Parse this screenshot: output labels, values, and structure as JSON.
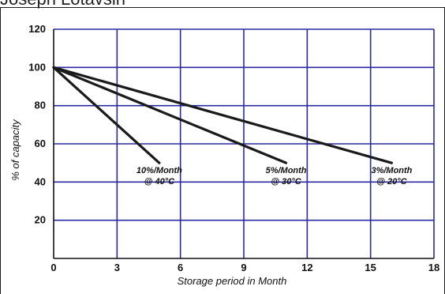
{
  "header": {
    "caption": "Joseph Lotavsin"
  },
  "chart_data": {
    "type": "line",
    "title": "",
    "xlabel": "Storage period in Month",
    "ylabel": "% of capacity",
    "xlim": [
      0,
      18
    ],
    "ylim": [
      0,
      120
    ],
    "x_ticks": [
      0,
      3,
      6,
      9,
      12,
      15,
      18
    ],
    "y_ticks": [
      20,
      40,
      60,
      80,
      100,
      120
    ],
    "grid": true,
    "colors": {
      "grid": "#2a2aa0",
      "series": "#1a1a1a",
      "axis": "#111111"
    },
    "series": [
      {
        "points": [
          [
            0,
            100
          ],
          [
            5,
            50
          ]
        ],
        "annotation": [
          "10%/Month",
          "@ 40°C"
        ]
      },
      {
        "points": [
          [
            0,
            100
          ],
          [
            11,
            50
          ]
        ],
        "annotation": [
          "5%/Month",
          "@ 30°C"
        ]
      },
      {
        "points": [
          [
            0,
            100
          ],
          [
            16,
            50
          ]
        ],
        "annotation": [
          "3%/Month",
          "@ 20°C"
        ]
      }
    ]
  }
}
